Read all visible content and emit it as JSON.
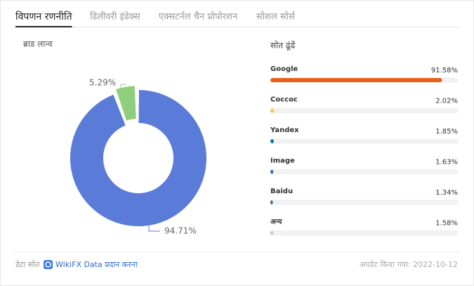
{
  "tabs": [
    "विपणन रणनीति",
    "डिलीवरी इंडेक्स",
    "एक्सटर्नल चैन प्रोपोरशन",
    "सोशल सोर्स"
  ],
  "active_tab": 0,
  "donut": {
    "title": "ब्राड लान्व",
    "segments": [
      {
        "value": 5.29,
        "label": "5.29%",
        "color": "#8fcf7c"
      },
      {
        "value": 94.71,
        "label": "94.71%",
        "color": "#5b7bd8"
      }
    ]
  },
  "sources": {
    "title": "सोत ढूंढें",
    "items": [
      {
        "name": "Google",
        "value": 91.58,
        "value_label": "91.58%",
        "color": "#e8601c"
      },
      {
        "name": "Coccoc",
        "value": 2.02,
        "value_label": "2.02%",
        "color": "#f2c94c"
      },
      {
        "name": "Yandex",
        "value": 1.85,
        "value_label": "1.85%",
        "color": "#0e7c9a"
      },
      {
        "name": "Image",
        "value": 1.63,
        "value_label": "1.63%",
        "color": "#3d6fb6"
      },
      {
        "name": "Baidu",
        "value": 1.34,
        "value_label": "1.34%",
        "color": "#3a6ea5"
      },
      {
        "name": "अन्य",
        "value": 1.58,
        "value_label": "1.58%",
        "color": "#c8c8c8"
      }
    ]
  },
  "footer": {
    "source_label": "डेटा सोत",
    "source_link": "WikiFX Data प्रदान करना",
    "updated": "अपडेट किया गया: 2022-10-12"
  }
}
